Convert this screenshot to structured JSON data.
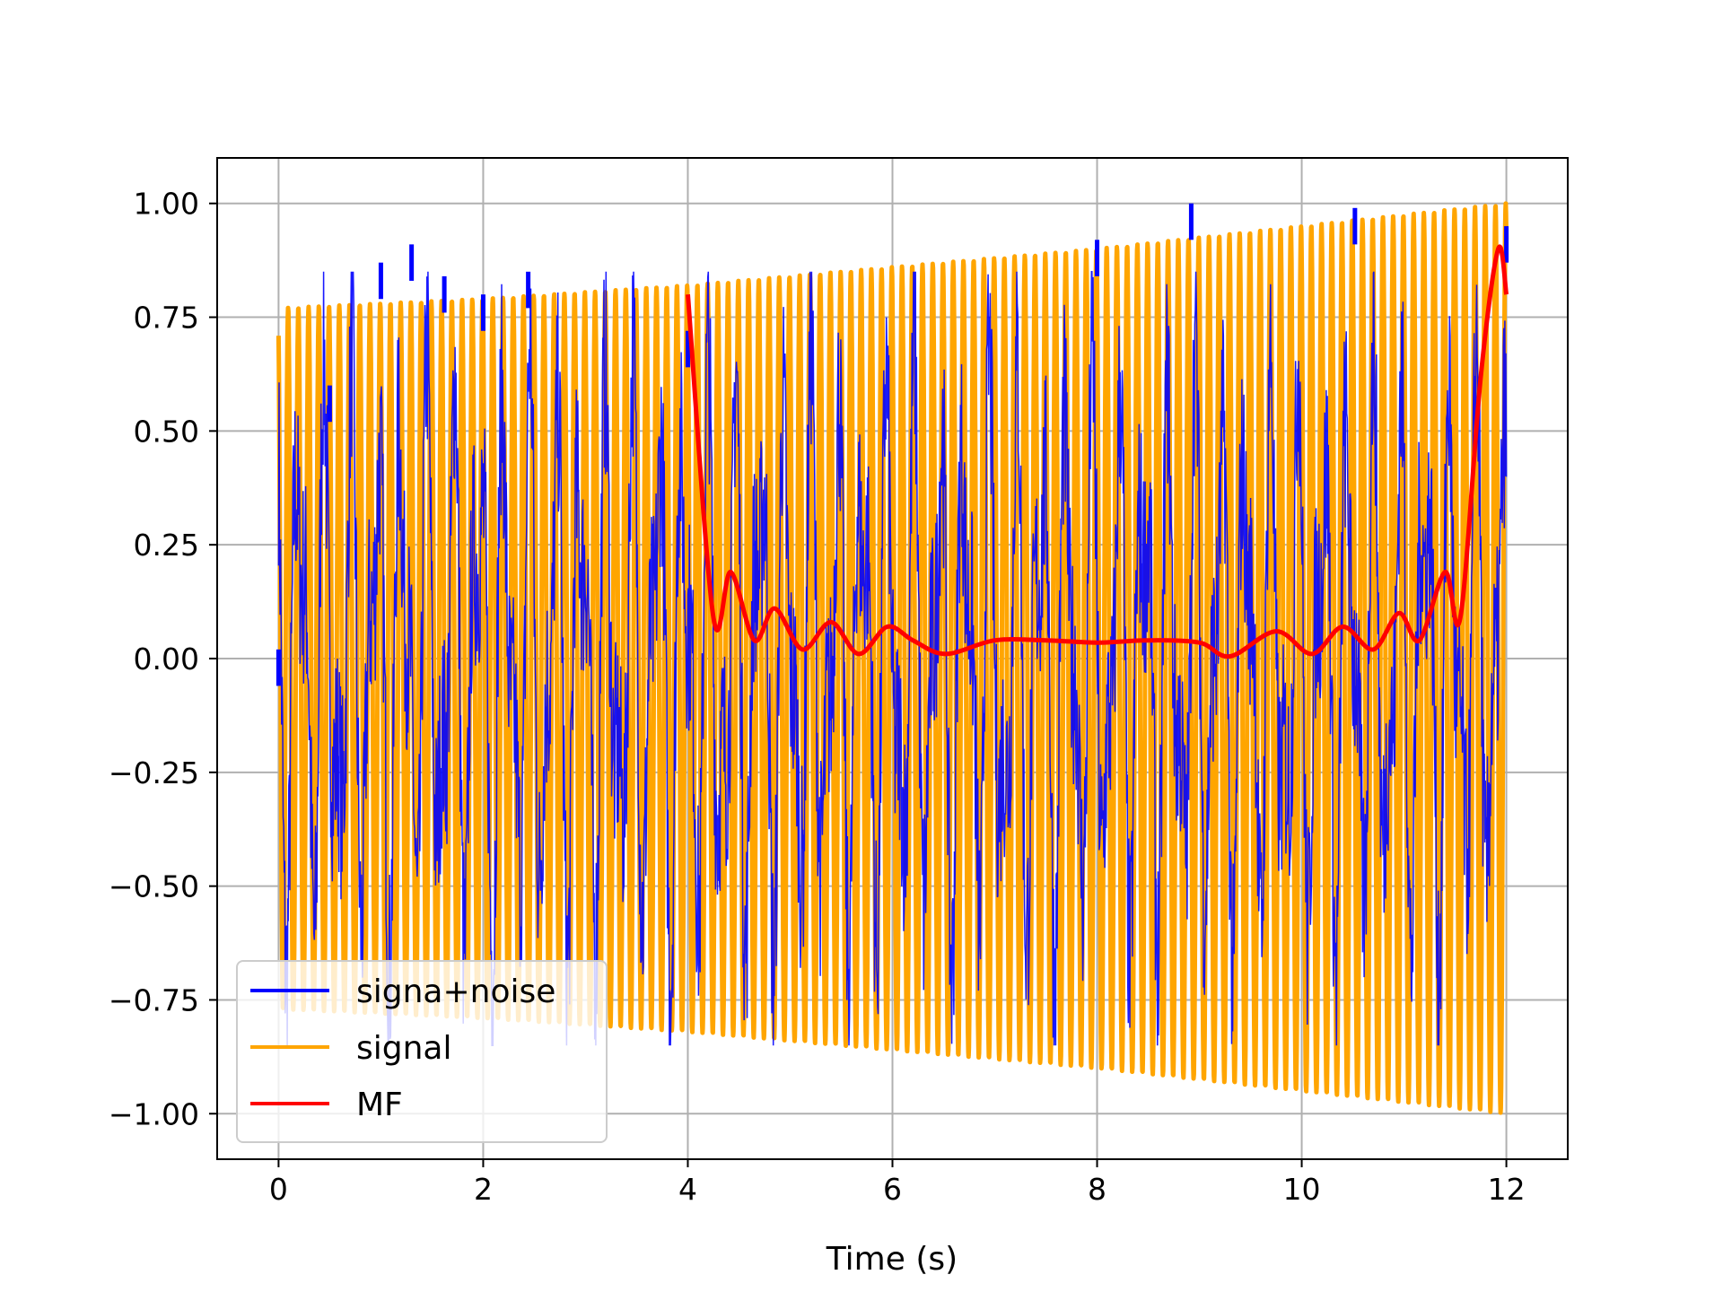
{
  "chart_data": {
    "type": "line",
    "title": "",
    "xlabel": "Time (s)",
    "ylabel": "",
    "xlim": [
      -0.6,
      12.6
    ],
    "ylim": [
      -1.1,
      1.1
    ],
    "x_ticks": [
      0,
      2,
      4,
      6,
      8,
      10,
      12
    ],
    "x_tick_labels": [
      "0",
      "2",
      "4",
      "6",
      "8",
      "10",
      "12"
    ],
    "y_ticks": [
      1.0,
      0.75,
      0.5,
      0.25,
      0.0,
      -0.25,
      -0.5,
      -0.75,
      -1.0
    ],
    "y_tick_labels": [
      "1.00",
      "0.75",
      "0.50",
      "0.25",
      "0.00",
      "−0.25",
      "−0.50",
      "−0.75",
      "−1.00"
    ],
    "grid": true,
    "legend_position": "lower-left",
    "series": [
      {
        "name": "signa+noise",
        "color": "#0000ff",
        "description_samples": {
          "x": [
            0.0,
            0.5,
            1.0,
            1.3,
            1.62,
            2.0,
            2.44,
            4.0,
            8.0,
            8.92,
            10.52,
            12.0
          ],
          "y": [
            0.02,
            0.6,
            0.87,
            0.91,
            0.84,
            0.8,
            0.85,
            0.72,
            0.92,
            1.0,
            0.99,
            0.95
          ]
        }
      },
      {
        "name": "signal",
        "color": "#ffa500",
        "envelope": {
          "x": [
            0,
            2,
            4,
            6,
            8,
            10,
            12
          ],
          "y_max": [
            0.77,
            0.79,
            0.82,
            0.86,
            0.9,
            0.95,
            1.0
          ],
          "y_min": [
            -0.77,
            -0.79,
            -0.82,
            -0.86,
            -0.9,
            -0.95,
            -1.0
          ]
        },
        "cycles_over_range": 120
      },
      {
        "name": "MF",
        "color": "#ff0000",
        "x": [
          4.0,
          4.25,
          4.42,
          4.65,
          4.85,
          5.12,
          5.4,
          5.67,
          5.95,
          6.2,
          6.52,
          7.0,
          7.5,
          8.0,
          8.5,
          9.0,
          9.3,
          9.75,
          10.1,
          10.4,
          10.7,
          10.95,
          11.15,
          11.4,
          11.55,
          11.75,
          11.92,
          12.0
        ],
        "y": [
          0.8,
          0.09,
          0.19,
          0.04,
          0.11,
          0.02,
          0.08,
          0.01,
          0.07,
          0.04,
          0.01,
          0.04,
          0.04,
          0.035,
          0.04,
          0.035,
          0.005,
          0.06,
          0.01,
          0.07,
          0.02,
          0.1,
          0.04,
          0.19,
          0.09,
          0.62,
          0.9,
          0.8
        ]
      }
    ]
  }
}
